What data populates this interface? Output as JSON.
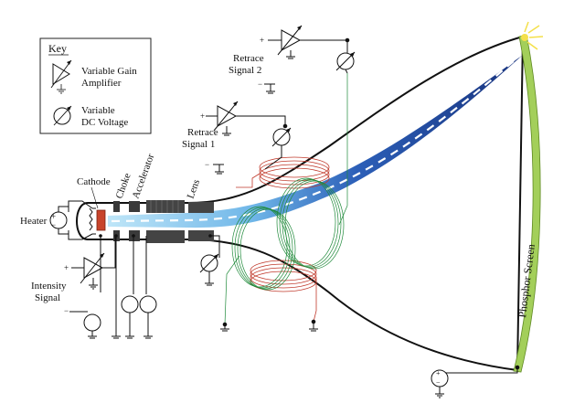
{
  "key": {
    "title": "Key",
    "amp_label_1": "Variable Gain",
    "amp_label_2": "Amplifier",
    "dc_label_1": "Variable",
    "dc_label_2": "DC Voltage",
    "amp_icon": "triangle-amplifier-icon",
    "dc_icon": "circle-arrow-source-icon"
  },
  "labels": {
    "heater": "Heater",
    "cathode": "Cathode",
    "choke": "Choke",
    "accelerator": "Accelerator",
    "lens": "Lens",
    "intensity_1": "Intensity",
    "intensity_2": "Signal",
    "retrace1_1": "Retrace",
    "retrace1_2": "Signal 1",
    "retrace2_1": "Retrace",
    "retrace2_2": "Signal 2",
    "phosphor": "Phosphor Screen"
  },
  "signs": {
    "plus": "+",
    "minus": "−"
  },
  "colors": {
    "beam_light": "#9ed6f2",
    "beam_dark": "#1c3f9a",
    "coil_red": "#c0392b",
    "coil_green": "#1f8a3a",
    "screen_green": "#a3cf5a",
    "cathode_red": "#c8442b",
    "glow_yellow": "#f4e04a"
  }
}
